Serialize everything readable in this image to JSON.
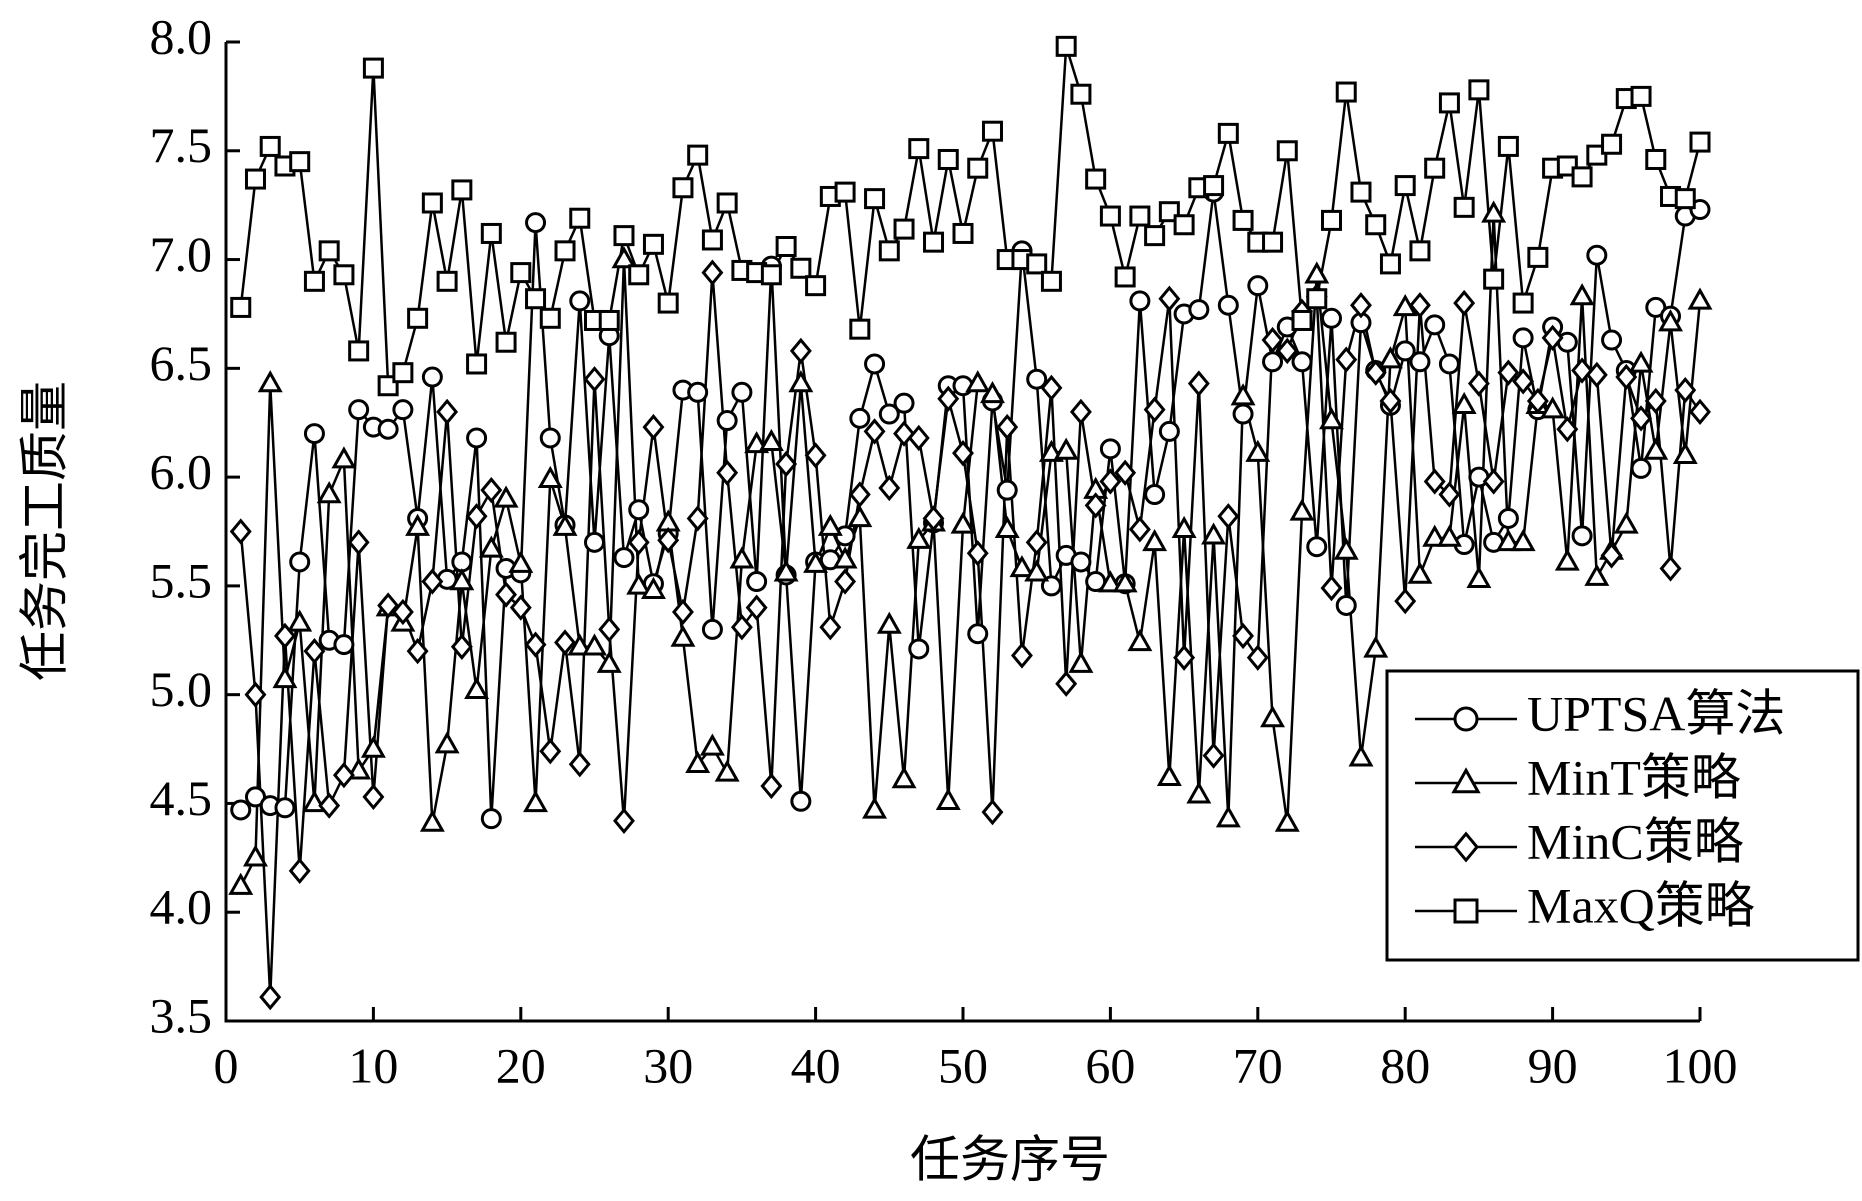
{
  "chart_data": {
    "type": "line",
    "xlabel": "任务序号",
    "ylabel": "任务完工质量",
    "x": [
      1,
      2,
      3,
      4,
      5,
      6,
      7,
      8,
      9,
      10,
      11,
      12,
      13,
      14,
      15,
      16,
      17,
      18,
      19,
      20,
      21,
      22,
      23,
      24,
      25,
      26,
      27,
      28,
      29,
      30,
      31,
      32,
      33,
      34,
      35,
      36,
      37,
      38,
      39,
      40,
      41,
      42,
      43,
      44,
      45,
      46,
      47,
      48,
      49,
      50,
      51,
      52,
      53,
      54,
      55,
      56,
      57,
      58,
      59,
      60,
      61,
      62,
      63,
      64,
      65,
      66,
      67,
      68,
      69,
      70,
      71,
      72,
      73,
      74,
      75,
      76,
      77,
      78,
      79,
      80,
      81,
      82,
      83,
      84,
      85,
      86,
      87,
      88,
      89,
      90,
      91,
      92,
      93,
      94,
      95,
      96,
      97,
      98,
      99,
      100
    ],
    "xlim": [
      0,
      100
    ],
    "xticks": [
      0,
      10,
      20,
      30,
      40,
      50,
      60,
      70,
      80,
      90,
      100
    ],
    "ylim": [
      3.5,
      8.0
    ],
    "yticks": [
      3.5,
      {
        "value": 4,
        "label": "4.0"
      },
      4.5,
      {
        "value": 5,
        "label": "5.0"
      },
      5.5,
      {
        "value": 6,
        "label": "6.0"
      },
      6.5,
      {
        "value": 7,
        "label": "7.0"
      },
      7.5,
      {
        "value": 8,
        "label": "8.0"
      }
    ],
    "grid": false,
    "legend": "lower right",
    "series": [
      {
        "name": "UPTSA算法",
        "color": "#000000",
        "marker": "circle",
        "values": [
          4.47,
          4.53,
          4.49,
          4.48,
          5.61,
          6.2,
          5.25,
          5.23,
          6.31,
          6.23,
          6.22,
          6.31,
          5.81,
          6.46,
          5.53,
          5.61,
          6.18,
          4.43,
          5.58,
          5.56,
          7.17,
          6.18,
          5.78,
          6.81,
          5.7,
          6.65,
          5.63,
          5.85,
          5.51,
          5.74,
          6.4,
          6.39,
          5.3,
          6.26,
          6.39,
          5.52,
          6.97,
          5.55,
          4.51,
          5.61,
          5.62,
          5.73,
          6.27,
          6.52,
          6.29,
          6.34,
          5.21,
          5.79,
          6.42,
          6.42,
          5.28,
          6.35,
          5.94,
          7.04,
          6.45,
          5.5,
          5.64,
          5.61,
          5.52,
          6.13,
          5.51,
          6.81,
          5.92,
          6.21,
          6.75,
          6.77,
          7.31,
          6.79,
          6.29,
          6.88,
          6.53,
          6.69,
          6.53,
          5.68,
          6.73,
          5.41,
          6.71,
          6.49,
          6.33,
          6.58,
          6.53,
          6.7,
          6.52,
          5.69,
          6.0,
          5.7,
          5.81,
          6.64,
          6.31,
          6.69,
          6.62,
          5.73,
          7.02,
          6.63,
          6.49,
          6.04,
          6.78,
          6.74,
          7.2,
          7.23
        ]
      },
      {
        "name": "MinT策略",
        "color": "#000000",
        "marker": "triangle",
        "values": [
          4.12,
          4.25,
          6.43,
          5.07,
          5.33,
          4.5,
          5.92,
          6.08,
          4.65,
          4.75,
          5.4,
          5.33,
          5.77,
          4.41,
          4.77,
          5.52,
          5.02,
          5.67,
          5.9,
          5.6,
          4.5,
          5.99,
          5.77,
          5.22,
          5.22,
          5.14,
          7.0,
          5.5,
          5.48,
          5.79,
          5.26,
          4.68,
          4.76,
          4.64,
          5.62,
          6.15,
          6.16,
          5.56,
          6.43,
          5.6,
          5.77,
          5.62,
          5.81,
          4.47,
          5.32,
          4.61,
          5.71,
          5.79,
          4.51,
          5.78,
          6.43,
          6.38,
          5.76,
          5.58,
          5.56,
          6.11,
          6.12,
          5.14,
          5.94,
          5.51,
          5.51,
          5.24,
          5.7,
          4.62,
          5.76,
          4.54,
          5.73,
          4.43,
          6.37,
          6.11,
          4.89,
          4.41,
          5.84,
          6.93,
          6.26,
          5.66,
          4.71,
          5.21,
          6.54,
          6.78,
          5.55,
          5.72,
          5.72,
          6.33,
          5.53,
          7.21,
          5.7,
          5.7,
          6.33,
          6.31,
          5.61,
          6.83,
          5.54,
          5.66,
          5.78,
          6.52,
          6.12,
          6.71,
          6.1,
          6.81
        ]
      },
      {
        "name": "MinC策略",
        "color": "#000000",
        "marker": "diamond",
        "values": [
          5.75,
          5.0,
          3.61,
          5.27,
          4.19,
          5.2,
          4.49,
          4.63,
          5.7,
          4.53,
          5.41,
          5.38,
          5.2,
          5.52,
          6.3,
          5.22,
          5.82,
          5.94,
          5.46,
          5.4,
          5.23,
          4.74,
          5.24,
          4.68,
          6.45,
          5.3,
          4.42,
          5.7,
          6.23,
          5.71,
          5.38,
          5.81,
          6.94,
          6.02,
          5.31,
          5.4,
          4.58,
          6.06,
          6.58,
          6.1,
          5.31,
          5.52,
          5.92,
          6.21,
          5.95,
          6.2,
          6.18,
          5.81,
          6.36,
          6.11,
          5.65,
          4.46,
          6.23,
          5.18,
          5.7,
          6.41,
          5.05,
          6.3,
          5.87,
          5.98,
          6.02,
          5.76,
          6.31,
          6.82,
          5.17,
          6.43,
          4.72,
          5.82,
          5.27,
          5.17,
          6.63,
          6.58,
          6.76,
          6.83,
          5.49,
          6.54,
          6.79,
          6.48,
          6.35,
          5.43,
          6.79,
          5.98,
          5.92,
          6.8,
          6.43,
          5.98,
          6.48,
          6.44,
          6.35,
          6.64,
          6.22,
          6.49,
          6.47,
          5.64,
          6.46,
          6.27,
          6.35,
          5.58,
          6.4,
          6.3
        ]
      },
      {
        "name": "MaxQ策略",
        "color": "#000000",
        "marker": "square",
        "values": [
          6.78,
          7.37,
          7.52,
          7.43,
          7.45,
          6.9,
          7.04,
          6.93,
          6.58,
          7.88,
          6.42,
          6.48,
          6.73,
          7.26,
          6.9,
          7.32,
          6.52,
          7.12,
          6.62,
          6.94,
          6.82,
          6.73,
          7.04,
          7.19,
          6.72,
          6.72,
          7.11,
          6.93,
          7.07,
          6.8,
          7.33,
          7.48,
          7.09,
          7.26,
          6.95,
          6.94,
          6.93,
          7.06,
          6.96,
          6.88,
          7.29,
          7.31,
          6.68,
          7.28,
          7.04,
          7.14,
          7.51,
          7.08,
          7.46,
          7.12,
          7.42,
          7.59,
          7.0,
          7.0,
          6.98,
          6.9,
          7.98,
          7.76,
          7.37,
          7.2,
          6.92,
          7.2,
          7.11,
          7.22,
          7.16,
          7.33,
          7.34,
          7.58,
          7.18,
          7.08,
          7.08,
          7.5,
          6.72,
          6.82,
          7.18,
          7.77,
          7.31,
          7.16,
          6.98,
          7.34,
          7.04,
          7.42,
          7.72,
          7.24,
          7.78,
          6.91,
          7.52,
          6.8,
          7.01,
          7.42,
          7.43,
          7.38,
          7.48,
          7.53,
          7.74,
          7.75,
          7.46,
          7.29,
          7.28,
          7.54
        ]
      }
    ]
  }
}
